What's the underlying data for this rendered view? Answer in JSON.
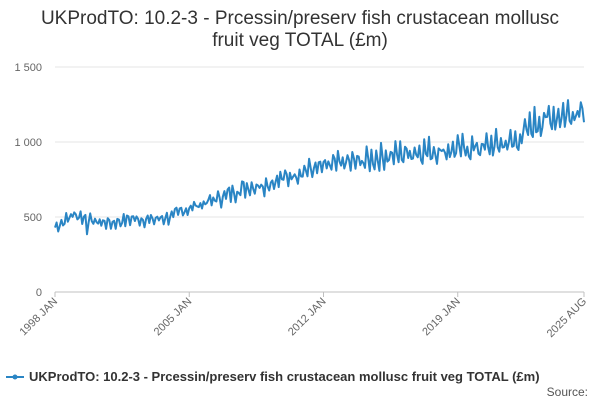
{
  "chart_data": {
    "type": "line",
    "title": [
      "UKProdTO: 10.2-3 - Prcessin/preserv fish crustacean mollusc",
      "fruit veg TOTAL (£m)"
    ],
    "xlabel": "",
    "ylabel": "",
    "ylim": [
      0,
      1500
    ],
    "y_ticks": [
      0,
      500,
      1000,
      1500
    ],
    "y_tick_labels": [
      "0",
      "500",
      "1 000",
      "1 500"
    ],
    "x_range": [
      "1998 JAN",
      "2025 AUG"
    ],
    "x_tick_labels": [
      "1998 JAN",
      "2005 JAN",
      "2012 JAN",
      "2019 JAN",
      "2025 AUG"
    ],
    "grid": true,
    "legend_position": "bottom",
    "series": [
      {
        "name": "UKProdTO: 10.2-3 - Prcessin/preserv fish crustacean mollusc fruit veg TOTAL (£m)",
        "color": "#2a85c4",
        "anchors": [
          {
            "x": "1998 JAN",
            "y": 430
          },
          {
            "x": "1999 JAN",
            "y": 520
          },
          {
            "x": "2000 JAN",
            "y": 470
          },
          {
            "x": "2001 JAN",
            "y": 460
          },
          {
            "x": "2002 JAN",
            "y": 490
          },
          {
            "x": "2003 JAN",
            "y": 480
          },
          {
            "x": "2004 JAN",
            "y": 500
          },
          {
            "x": "2005 JAN",
            "y": 560
          },
          {
            "x": "2006 JAN",
            "y": 600
          },
          {
            "x": "2007 JAN",
            "y": 650
          },
          {
            "x": "2008 JAN",
            "y": 700
          },
          {
            "x": "2009 JAN",
            "y": 720
          },
          {
            "x": "2010 JAN",
            "y": 760
          },
          {
            "x": "2011 JAN",
            "y": 810
          },
          {
            "x": "2012 JAN",
            "y": 830
          },
          {
            "x": "2013 JAN",
            "y": 860
          },
          {
            "x": "2014 JAN",
            "y": 870
          },
          {
            "x": "2015 JAN",
            "y": 900
          },
          {
            "x": "2016 JAN",
            "y": 920
          },
          {
            "x": "2017 JAN",
            "y": 940
          },
          {
            "x": "2018 JAN",
            "y": 940
          },
          {
            "x": "2019 JAN",
            "y": 950
          },
          {
            "x": "2020 JAN",
            "y": 960
          },
          {
            "x": "2021 JAN",
            "y": 980
          },
          {
            "x": "2022 JAN",
            "y": 1000
          },
          {
            "x": "2023 JAN",
            "y": 1120
          },
          {
            "x": "2024 JAN",
            "y": 1170
          },
          {
            "x": "2025 AUG",
            "y": 1210
          }
        ],
        "min_point": {
          "x": "1999 SEP",
          "y": 385
        },
        "max_point": {
          "x": "2025 JUN",
          "y": 1265
        }
      }
    ]
  },
  "legend": {
    "label": "UKProdTO: 10.2-3 - Prcessin/preserv fish crustacean mollusc fruit veg TOTAL (£m)"
  },
  "footer": {
    "source_label": "Source:"
  }
}
